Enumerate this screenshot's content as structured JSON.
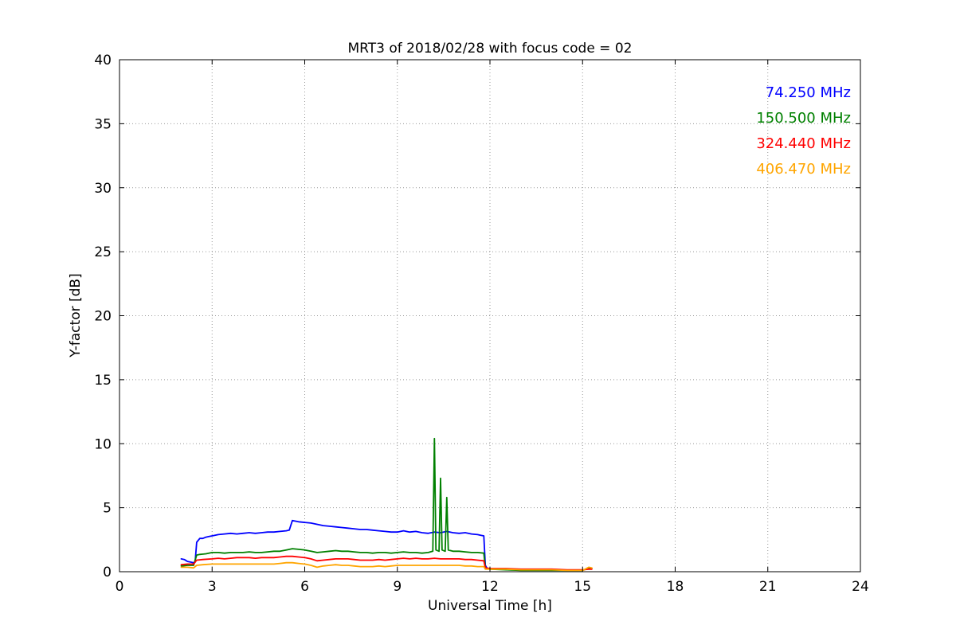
{
  "chart_data": {
    "type": "line",
    "title": "MRT3 of 2018/02/28 with focus code = 02",
    "xlabel": "Universal Time [h]",
    "ylabel": "Y-factor [dB]",
    "xlim": [
      0,
      24
    ],
    "ylim": [
      0,
      40
    ],
    "xticks": [
      0,
      3,
      6,
      9,
      12,
      15,
      18,
      21,
      24
    ],
    "yticks": [
      0,
      5,
      10,
      15,
      20,
      25,
      30,
      35,
      40
    ],
    "grid": true,
    "grid_style": "dotted",
    "legend_position": "top-right",
    "legend_entries": [
      {
        "label": "74.250 MHz",
        "color": "#0000ff"
      },
      {
        "label": "150.500 MHz",
        "color": "#008000"
      },
      {
        "label": "324.440 MHz",
        "color": "#ff0000"
      },
      {
        "label": "406.470 MHz",
        "color": "#ffa500"
      }
    ],
    "series": [
      {
        "name": "74.250 MHz",
        "color": "#0000ff",
        "points": [
          [
            2.0,
            1.0
          ],
          [
            2.1,
            0.95
          ],
          [
            2.2,
            0.8
          ],
          [
            2.3,
            0.75
          ],
          [
            2.4,
            0.7
          ],
          [
            2.45,
            0.75
          ],
          [
            2.5,
            2.3
          ],
          [
            2.6,
            2.6
          ],
          [
            2.7,
            2.6
          ],
          [
            2.8,
            2.7
          ],
          [
            2.9,
            2.75
          ],
          [
            3.0,
            2.8
          ],
          [
            3.2,
            2.9
          ],
          [
            3.4,
            2.95
          ],
          [
            3.6,
            3.0
          ],
          [
            3.8,
            2.95
          ],
          [
            4.0,
            3.0
          ],
          [
            4.2,
            3.05
          ],
          [
            4.4,
            3.0
          ],
          [
            4.6,
            3.05
          ],
          [
            4.8,
            3.1
          ],
          [
            5.0,
            3.1
          ],
          [
            5.2,
            3.15
          ],
          [
            5.4,
            3.2
          ],
          [
            5.5,
            3.25
          ],
          [
            5.6,
            4.0
          ],
          [
            5.7,
            3.95
          ],
          [
            5.8,
            3.9
          ],
          [
            6.0,
            3.85
          ],
          [
            6.2,
            3.8
          ],
          [
            6.4,
            3.7
          ],
          [
            6.6,
            3.6
          ],
          [
            6.8,
            3.55
          ],
          [
            7.0,
            3.5
          ],
          [
            7.2,
            3.45
          ],
          [
            7.4,
            3.4
          ],
          [
            7.6,
            3.35
          ],
          [
            7.8,
            3.3
          ],
          [
            8.0,
            3.3
          ],
          [
            8.2,
            3.25
          ],
          [
            8.4,
            3.2
          ],
          [
            8.6,
            3.15
          ],
          [
            8.8,
            3.1
          ],
          [
            9.0,
            3.1
          ],
          [
            9.2,
            3.2
          ],
          [
            9.4,
            3.1
          ],
          [
            9.6,
            3.15
          ],
          [
            9.8,
            3.05
          ],
          [
            10.0,
            3.0
          ],
          [
            10.2,
            3.1
          ],
          [
            10.4,
            3.05
          ],
          [
            10.6,
            3.15
          ],
          [
            10.8,
            3.05
          ],
          [
            11.0,
            3.0
          ],
          [
            11.2,
            3.05
          ],
          [
            11.4,
            2.95
          ],
          [
            11.6,
            2.9
          ],
          [
            11.7,
            2.85
          ],
          [
            11.8,
            2.8
          ],
          [
            11.85,
            0.5
          ],
          [
            11.9,
            0.3
          ]
        ]
      },
      {
        "name": "150.500 MHz",
        "color": "#008000",
        "points": [
          [
            2.0,
            0.45
          ],
          [
            2.2,
            0.5
          ],
          [
            2.4,
            0.5
          ],
          [
            2.5,
            1.3
          ],
          [
            2.6,
            1.35
          ],
          [
            2.8,
            1.4
          ],
          [
            3.0,
            1.5
          ],
          [
            3.2,
            1.5
          ],
          [
            3.4,
            1.45
          ],
          [
            3.6,
            1.5
          ],
          [
            3.8,
            1.5
          ],
          [
            4.0,
            1.5
          ],
          [
            4.2,
            1.55
          ],
          [
            4.4,
            1.5
          ],
          [
            4.6,
            1.5
          ],
          [
            4.8,
            1.55
          ],
          [
            5.0,
            1.6
          ],
          [
            5.2,
            1.6
          ],
          [
            5.4,
            1.7
          ],
          [
            5.6,
            1.8
          ],
          [
            5.8,
            1.75
          ],
          [
            6.0,
            1.7
          ],
          [
            6.2,
            1.6
          ],
          [
            6.4,
            1.5
          ],
          [
            6.6,
            1.55
          ],
          [
            6.8,
            1.6
          ],
          [
            7.0,
            1.65
          ],
          [
            7.2,
            1.6
          ],
          [
            7.4,
            1.6
          ],
          [
            7.6,
            1.55
          ],
          [
            7.8,
            1.5
          ],
          [
            8.0,
            1.5
          ],
          [
            8.2,
            1.45
          ],
          [
            8.4,
            1.5
          ],
          [
            8.6,
            1.5
          ],
          [
            8.8,
            1.45
          ],
          [
            9.0,
            1.5
          ],
          [
            9.2,
            1.55
          ],
          [
            9.4,
            1.5
          ],
          [
            9.6,
            1.5
          ],
          [
            9.8,
            1.45
          ],
          [
            10.0,
            1.5
          ],
          [
            10.15,
            1.6
          ],
          [
            10.2,
            10.4
          ],
          [
            10.25,
            1.7
          ],
          [
            10.35,
            1.6
          ],
          [
            10.4,
            7.3
          ],
          [
            10.45,
            1.7
          ],
          [
            10.55,
            1.6
          ],
          [
            10.6,
            5.8
          ],
          [
            10.65,
            1.7
          ],
          [
            10.8,
            1.6
          ],
          [
            11.0,
            1.6
          ],
          [
            11.2,
            1.55
          ],
          [
            11.4,
            1.5
          ],
          [
            11.6,
            1.5
          ],
          [
            11.8,
            1.45
          ],
          [
            11.85,
            0.3
          ],
          [
            12.0,
            0.2
          ],
          [
            12.5,
            0.15
          ],
          [
            13.0,
            0.1
          ],
          [
            13.5,
            0.1
          ],
          [
            14.0,
            0.1
          ],
          [
            14.5,
            0.1
          ],
          [
            15.0,
            0.1
          ],
          [
            15.2,
            0.3
          ],
          [
            15.3,
            0.25
          ]
        ]
      },
      {
        "name": "324.440 MHz",
        "color": "#ff0000",
        "points": [
          [
            2.0,
            0.55
          ],
          [
            2.2,
            0.6
          ],
          [
            2.4,
            0.6
          ],
          [
            2.5,
            0.9
          ],
          [
            2.7,
            0.95
          ],
          [
            3.0,
            1.0
          ],
          [
            3.2,
            1.05
          ],
          [
            3.4,
            1.0
          ],
          [
            3.6,
            1.05
          ],
          [
            3.8,
            1.1
          ],
          [
            4.0,
            1.1
          ],
          [
            4.2,
            1.1
          ],
          [
            4.4,
            1.05
          ],
          [
            4.6,
            1.1
          ],
          [
            4.8,
            1.1
          ],
          [
            5.0,
            1.1
          ],
          [
            5.2,
            1.15
          ],
          [
            5.4,
            1.2
          ],
          [
            5.6,
            1.2
          ],
          [
            5.8,
            1.15
          ],
          [
            6.0,
            1.1
          ],
          [
            6.2,
            1.0
          ],
          [
            6.4,
            0.85
          ],
          [
            6.6,
            0.9
          ],
          [
            6.8,
            0.95
          ],
          [
            7.0,
            1.0
          ],
          [
            7.2,
            1.0
          ],
          [
            7.4,
            1.0
          ],
          [
            7.6,
            0.95
          ],
          [
            7.8,
            0.9
          ],
          [
            8.0,
            0.9
          ],
          [
            8.2,
            0.9
          ],
          [
            8.4,
            0.95
          ],
          [
            8.6,
            0.9
          ],
          [
            8.8,
            0.95
          ],
          [
            9.0,
            1.0
          ],
          [
            9.2,
            1.05
          ],
          [
            9.4,
            1.0
          ],
          [
            9.6,
            1.05
          ],
          [
            9.8,
            1.0
          ],
          [
            10.0,
            1.0
          ],
          [
            10.2,
            1.05
          ],
          [
            10.4,
            1.0
          ],
          [
            10.6,
            1.0
          ],
          [
            10.8,
            1.0
          ],
          [
            11.0,
            1.0
          ],
          [
            11.2,
            0.95
          ],
          [
            11.4,
            0.95
          ],
          [
            11.6,
            0.9
          ],
          [
            11.8,
            0.85
          ],
          [
            11.85,
            0.3
          ],
          [
            12.0,
            0.25
          ],
          [
            12.5,
            0.25
          ],
          [
            13.0,
            0.2
          ],
          [
            13.5,
            0.2
          ],
          [
            14.0,
            0.2
          ],
          [
            14.5,
            0.15
          ],
          [
            15.0,
            0.15
          ],
          [
            15.2,
            0.2
          ],
          [
            15.3,
            0.2
          ]
        ]
      },
      {
        "name": "406.470 MHz",
        "color": "#ffa500",
        "points": [
          [
            2.0,
            0.35
          ],
          [
            2.2,
            0.35
          ],
          [
            2.4,
            0.3
          ],
          [
            2.5,
            0.5
          ],
          [
            2.7,
            0.55
          ],
          [
            3.0,
            0.6
          ],
          [
            3.2,
            0.6
          ],
          [
            3.4,
            0.6
          ],
          [
            3.6,
            0.6
          ],
          [
            3.8,
            0.6
          ],
          [
            4.0,
            0.6
          ],
          [
            4.2,
            0.6
          ],
          [
            4.4,
            0.6
          ],
          [
            4.6,
            0.6
          ],
          [
            4.8,
            0.6
          ],
          [
            5.0,
            0.6
          ],
          [
            5.2,
            0.65
          ],
          [
            5.4,
            0.7
          ],
          [
            5.6,
            0.7
          ],
          [
            5.8,
            0.65
          ],
          [
            6.0,
            0.6
          ],
          [
            6.2,
            0.5
          ],
          [
            6.4,
            0.35
          ],
          [
            6.6,
            0.45
          ],
          [
            6.8,
            0.5
          ],
          [
            7.0,
            0.55
          ],
          [
            7.2,
            0.5
          ],
          [
            7.4,
            0.5
          ],
          [
            7.6,
            0.45
          ],
          [
            7.8,
            0.4
          ],
          [
            8.0,
            0.4
          ],
          [
            8.2,
            0.4
          ],
          [
            8.4,
            0.45
          ],
          [
            8.6,
            0.4
          ],
          [
            8.8,
            0.45
          ],
          [
            9.0,
            0.5
          ],
          [
            9.2,
            0.5
          ],
          [
            9.4,
            0.5
          ],
          [
            9.6,
            0.5
          ],
          [
            9.8,
            0.5
          ],
          [
            10.0,
            0.5
          ],
          [
            10.2,
            0.5
          ],
          [
            10.4,
            0.5
          ],
          [
            10.6,
            0.5
          ],
          [
            10.8,
            0.5
          ],
          [
            11.0,
            0.5
          ],
          [
            11.2,
            0.45
          ],
          [
            11.4,
            0.45
          ],
          [
            11.6,
            0.4
          ],
          [
            11.8,
            0.4
          ],
          [
            11.85,
            0.2
          ],
          [
            12.0,
            0.2
          ],
          [
            12.5,
            0.2
          ],
          [
            13.0,
            0.15
          ],
          [
            13.5,
            0.15
          ],
          [
            14.0,
            0.15
          ],
          [
            14.5,
            0.1
          ],
          [
            15.0,
            0.1
          ],
          [
            15.2,
            0.35
          ],
          [
            15.3,
            0.3
          ]
        ]
      }
    ]
  }
}
